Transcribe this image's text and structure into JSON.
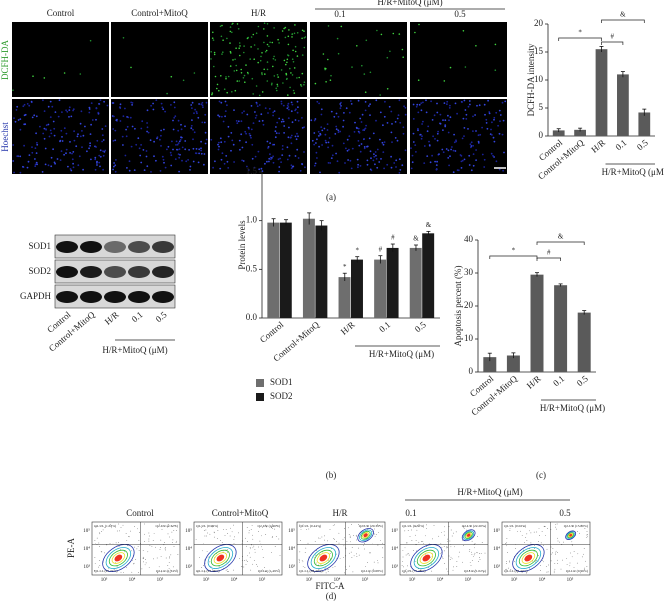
{
  "panel_a": {
    "columns": [
      "Control",
      "Control+MitoQ",
      "H/R",
      "0.1",
      "0.5"
    ],
    "group_label": "H/R+MitoQ (μM)",
    "rows": [
      "DCFH-DA",
      "Hoechst"
    ],
    "chart": {
      "type": "bar",
      "y_label": "DCFH-DA intensity",
      "categories": [
        "Control",
        "Control+MitoQ",
        "H/R",
        "0.1",
        "0.5"
      ],
      "group_label": "H/R+MitoQ (μM)",
      "values": [
        1,
        1.1,
        15.5,
        11,
        4.2
      ],
      "errors": [
        0.3,
        0.3,
        0.5,
        0.5,
        0.6
      ],
      "color": "#5a5a5a",
      "ylim": [
        0,
        20
      ],
      "yticks": [
        0,
        5,
        10,
        15,
        20
      ],
      "significance": [
        "*",
        "#",
        "&"
      ]
    },
    "label": "(a)"
  },
  "panel_b": {
    "blot_rows": [
      "SOD1",
      "SOD2",
      "GAPDH"
    ],
    "lanes": [
      "Control",
      "Control+MitoQ",
      "H/R",
      "0.1",
      "0.5"
    ],
    "group_label": "H/R+MitoQ (μM)",
    "chart": {
      "type": "grouped_bar",
      "y_label": "Protein levels",
      "categories": [
        "Control",
        "Control+MitoQ",
        "H/R",
        "0.1",
        "0.5"
      ],
      "group_label": "H/R+MitoQ (μM)",
      "series": [
        {
          "name": "SOD1",
          "color": "#6e6e6e",
          "values": [
            0.98,
            1.02,
            0.42,
            0.6,
            0.72
          ],
          "errors": [
            0.04,
            0.06,
            0.04,
            0.04,
            0.03
          ],
          "significance": [
            null,
            null,
            "*",
            "#",
            "&"
          ]
        },
        {
          "name": "SOD2",
          "color": "#1a1a1a",
          "values": [
            0.98,
            0.95,
            0.6,
            0.72,
            0.87
          ],
          "errors": [
            0.03,
            0.05,
            0.03,
            0.04,
            0.02
          ],
          "significance": [
            null,
            null,
            "*",
            "#",
            "&"
          ]
        }
      ],
      "ylim": [
        0,
        1.5
      ],
      "yticks": [
        {
          "value": 0,
          "label": "0.0"
        },
        {
          "value": 0.5,
          "label": "0.5"
        },
        {
          "value": 1,
          "label": "1.0"
        },
        {
          "value": 1.5,
          "label": "1.5"
        }
      ]
    },
    "label": "(b)"
  },
  "panel_c": {
    "chart": {
      "type": "bar",
      "y_label": "Apoptosis percent (%)",
      "categories": [
        "Control",
        "Control+MitoQ",
        "H/R",
        "0.1",
        "0.5"
      ],
      "group_label": "H/R+MitoQ (μM)",
      "values": [
        4.5,
        5,
        29.5,
        26.3,
        18
      ],
      "errors": [
        1.2,
        0.8,
        0.6,
        0.4,
        0.6
      ],
      "color": "#5a5a5a",
      "ylim": [
        0,
        40
      ],
      "yticks": [
        0,
        10,
        20,
        30,
        40
      ],
      "significance": [
        "*",
        "#",
        "&"
      ]
    },
    "label": "(c)"
  },
  "panel_d": {
    "columns": [
      "Control",
      "Control+MitoQ",
      "H/R",
      "0.1",
      "0.5"
    ],
    "group_label": "H/R+MitoQ (μM)",
    "y_label": "PE-A",
    "x_label": "FITC-A",
    "axis_ticks": [
      "10³",
      "10⁴",
      "10⁵"
    ],
    "quadrants": [
      [
        "Q2-UL (1.63%)",
        "Q2-UR (2.32%)",
        "Q2-LL (95.71%)",
        "Q2-LR (1.34%)"
      ],
      [
        "Q2-UL (0.99%)",
        "Q2-UR (4.06%)",
        "Q2-LL (93.46%)",
        "Q2-LR (1.49%)"
      ],
      [
        "Q2-UL (0.44%)",
        "Q2-UR (29.39%)",
        "Q2-LL (69.49%)",
        "Q2-LR (0.68%)"
      ],
      [
        "Q2-UL (0.50%)",
        "Q2-UR (22.20%)",
        "Q2-LL (75.28%)",
        "Q2-LR (1.02%)"
      ],
      [
        "Q2-UL (0.02%)",
        "Q2-UR (15.60%)",
        "Q2-LL (83.42%)",
        "Q2-LR (0.96%)"
      ]
    ],
    "label": "(d)"
  }
}
